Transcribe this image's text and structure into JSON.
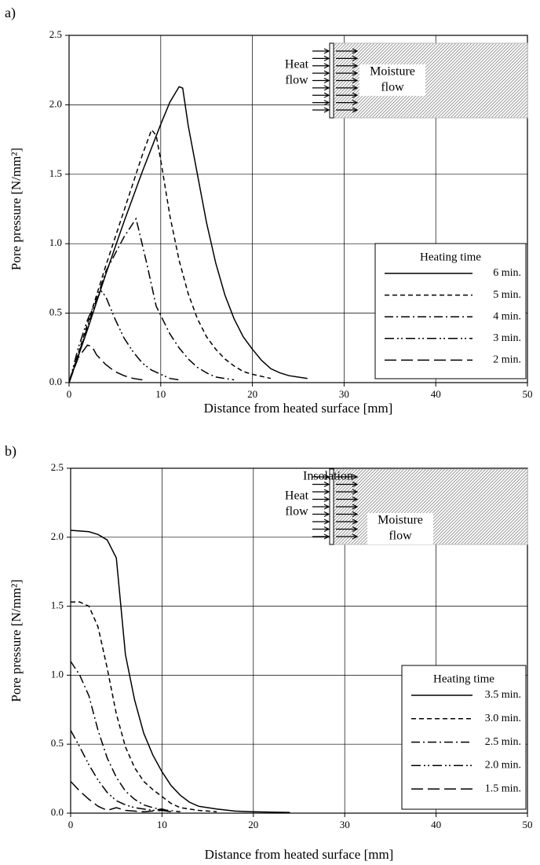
{
  "chart_data": [
    {
      "type": "line",
      "panel_label": "a)",
      "x_label": "Distance from heated surface [mm]",
      "y_label": "Pore pressure [N/mm²]",
      "xlim": [
        0,
        50
      ],
      "xticks": [
        0,
        10,
        20,
        30,
        40,
        50
      ],
      "ylim": [
        0,
        2.5
      ],
      "yticks": [
        {
          "value": 0,
          "label": "0.0"
        },
        {
          "value": 0.5,
          "label": "0.5"
        },
        {
          "value": 1,
          "label": "1.0"
        },
        {
          "value": 1.5,
          "label": "1.5"
        },
        {
          "value": 2,
          "label": "2.0"
        },
        {
          "value": 2.5,
          "label": "2.5"
        }
      ],
      "grid": true,
      "legend_title": "Heating time",
      "legend_position": "lower right",
      "annotations": [
        [
          "Heat",
          "flow"
        ],
        [
          "Moisture",
          "flow"
        ]
      ],
      "series": [
        {
          "name": "6 min.",
          "color": "#000000",
          "style": "solid",
          "x": [
            0,
            2,
            4,
            6,
            8,
            10,
            11,
            12,
            12.4,
            13,
            14,
            15,
            16,
            17,
            18,
            19,
            20,
            21,
            22,
            23,
            24,
            26
          ],
          "values": [
            0,
            0.38,
            0.78,
            1.16,
            1.52,
            1.86,
            2.02,
            2.13,
            2.12,
            1.85,
            1.5,
            1.15,
            0.86,
            0.63,
            0.46,
            0.33,
            0.24,
            0.16,
            0.1,
            0.07,
            0.05,
            0.03
          ]
        },
        {
          "name": "5 min.",
          "color": "#000000",
          "style": "dashed",
          "x": [
            0,
            2,
            4,
            6,
            8,
            9,
            9.5,
            10,
            11,
            12,
            13,
            14,
            15,
            16,
            17,
            18,
            19,
            20,
            22
          ],
          "values": [
            0,
            0.42,
            0.84,
            1.24,
            1.64,
            1.82,
            1.78,
            1.6,
            1.2,
            0.88,
            0.64,
            0.46,
            0.33,
            0.24,
            0.17,
            0.12,
            0.08,
            0.06,
            0.03
          ]
        },
        {
          "name": "4 min.",
          "color": "#000000",
          "style": "dashdot",
          "x": [
            0,
            2,
            4,
            6,
            7.3,
            7.6,
            8.5,
            9.5,
            11,
            12,
            13,
            14,
            15,
            16,
            18
          ],
          "values": [
            0,
            0.4,
            0.8,
            1.05,
            1.18,
            1.1,
            0.85,
            0.55,
            0.35,
            0.25,
            0.17,
            0.11,
            0.07,
            0.04,
            0.02
          ]
        },
        {
          "name": "3 min.",
          "color": "#000000",
          "style": "dashdotdot",
          "x": [
            0,
            1,
            2,
            3,
            3.5,
            4,
            5,
            6,
            7,
            8,
            9,
            10,
            11,
            12
          ],
          "values": [
            0,
            0.25,
            0.45,
            0.6,
            0.66,
            0.62,
            0.46,
            0.32,
            0.22,
            0.14,
            0.09,
            0.06,
            0.03,
            0.02
          ]
        },
        {
          "name": "2 min.",
          "color": "#000000",
          "style": "longdash",
          "x": [
            0,
            1,
            2,
            2.5,
            3,
            4,
            5,
            6,
            7,
            8
          ],
          "values": [
            0,
            0.18,
            0.27,
            0.26,
            0.2,
            0.13,
            0.08,
            0.05,
            0.03,
            0.02
          ]
        }
      ]
    },
    {
      "type": "line",
      "panel_label": "b)",
      "x_label": "Distance from heated surface [mm]",
      "y_label": "Pore pressure [N/mm²]",
      "xlim": [
        0,
        50
      ],
      "xticks": [
        0,
        10,
        20,
        30,
        40,
        50
      ],
      "ylim": [
        0,
        2.5
      ],
      "yticks": [
        {
          "value": 0,
          "label": "0.0"
        },
        {
          "value": 0.5,
          "label": "0.5"
        },
        {
          "value": 1,
          "label": "1.0"
        },
        {
          "value": 1.5,
          "label": "1.5"
        },
        {
          "value": 2,
          "label": "2.0"
        },
        {
          "value": 2.5,
          "label": "2.5"
        }
      ],
      "grid": true,
      "legend_title": "Heating time",
      "legend_position": "lower right",
      "annotations": [
        [
          "Heat",
          "flow"
        ],
        [
          "Moisture",
          "flow"
        ],
        [
          "Insolation"
        ]
      ],
      "series": [
        {
          "name": "3.5 min.",
          "color": "#000000",
          "style": "solid",
          "x": [
            0,
            2,
            3,
            4,
            5,
            5.5,
            6,
            7,
            8,
            9,
            10,
            11,
            12,
            13,
            14,
            16,
            18,
            20,
            24
          ],
          "values": [
            2.05,
            2.04,
            2.02,
            1.98,
            1.85,
            1.5,
            1.15,
            0.82,
            0.58,
            0.42,
            0.3,
            0.2,
            0.13,
            0.08,
            0.05,
            0.03,
            0.015,
            0.01,
            0.005
          ]
        },
        {
          "name": "3.0 min.",
          "color": "#000000",
          "style": "dashed",
          "x": [
            0,
            1,
            2,
            3,
            4,
            5,
            6,
            7,
            8,
            9,
            10,
            11,
            12,
            14,
            16
          ],
          "values": [
            1.53,
            1.53,
            1.5,
            1.35,
            1.05,
            0.72,
            0.48,
            0.33,
            0.23,
            0.17,
            0.12,
            0.07,
            0.04,
            0.02,
            0.01
          ]
        },
        {
          "name": "2.5 min.",
          "color": "#000000",
          "style": "dashdot",
          "x": [
            0,
            1,
            2,
            3,
            4,
            5,
            6,
            7,
            8,
            9,
            10,
            12
          ],
          "values": [
            1.1,
            1.0,
            0.85,
            0.6,
            0.4,
            0.26,
            0.16,
            0.1,
            0.06,
            0.04,
            0.025,
            0.01
          ]
        },
        {
          "name": "2.0 min.",
          "color": "#000000",
          "style": "dashdotdot",
          "x": [
            0,
            1,
            2,
            3,
            4,
            5,
            6,
            7,
            8,
            9,
            10,
            11
          ],
          "values": [
            0.6,
            0.48,
            0.35,
            0.24,
            0.15,
            0.09,
            0.06,
            0.04,
            0.03,
            0.02,
            0.03,
            0.01
          ]
        },
        {
          "name": "1.5 min.",
          "color": "#000000",
          "style": "longdash",
          "x": [
            0,
            1,
            2,
            3,
            4,
            5,
            6,
            8,
            10,
            11
          ],
          "values": [
            0.23,
            0.16,
            0.1,
            0.05,
            0.02,
            0.04,
            0.02,
            0.01,
            0.02,
            0.01
          ]
        }
      ]
    }
  ]
}
